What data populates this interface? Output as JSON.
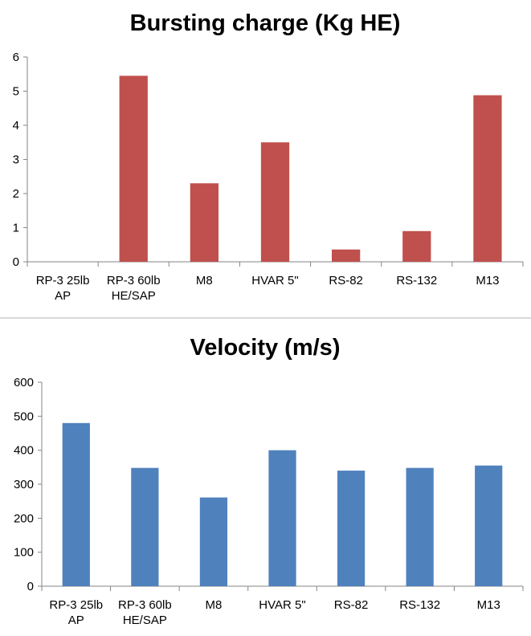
{
  "chart_data": [
    {
      "type": "bar",
      "title": "Bursting charge (Kg HE)",
      "categories": [
        [
          "RP-3 25lb",
          "AP"
        ],
        [
          "RP-3 60lb",
          "HE/SAP"
        ],
        [
          "M8"
        ],
        [
          "HVAR 5\""
        ],
        [
          "RS-82"
        ],
        [
          "RS-132"
        ],
        [
          "M13"
        ]
      ],
      "values": [
        0,
        5.45,
        2.3,
        3.5,
        0.36,
        0.9,
        4.88
      ],
      "ylim": [
        0,
        6
      ],
      "yticks": [
        0,
        1,
        2,
        3,
        4,
        5,
        6
      ],
      "grid": false,
      "legend": "none",
      "bar_color": "#c0504d"
    },
    {
      "type": "bar",
      "title": "Velocity (m/s)",
      "categories": [
        [
          "RP-3 25lb",
          "AP"
        ],
        [
          "RP-3 60lb",
          "HE/SAP"
        ],
        [
          "M8"
        ],
        [
          "HVAR 5\""
        ],
        [
          "RS-82"
        ],
        [
          "RS-132"
        ],
        [
          "M13"
        ]
      ],
      "values": [
        480,
        348,
        261,
        400,
        340,
        348,
        355
      ],
      "ylim": [
        0,
        600
      ],
      "yticks": [
        0,
        100,
        200,
        300,
        400,
        500,
        600
      ],
      "grid": false,
      "legend": "none",
      "bar_color": "#4f81bd"
    }
  ]
}
